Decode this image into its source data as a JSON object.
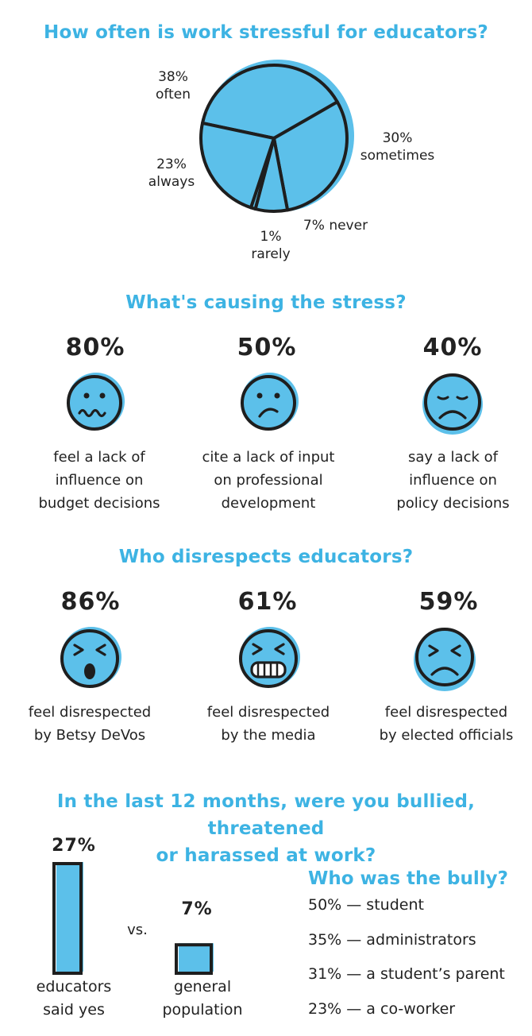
{
  "chart_data": [
    {
      "type": "pie",
      "title": "How often is work stressful for educators?",
      "slices": [
        {
          "label": "often",
          "value": 38,
          "display": "38%"
        },
        {
          "label": "sometimes",
          "value": 30,
          "display": "30%"
        },
        {
          "label": "never",
          "value": 7,
          "display": "7%"
        },
        {
          "label": "rarely",
          "value": 1,
          "display": "1%"
        },
        {
          "label": "always",
          "value": 23,
          "display": "23%"
        }
      ],
      "color": "#5cc0ea",
      "outline": "#1e1e1e"
    },
    {
      "type": "table",
      "title": "What's causing the stress?",
      "items": [
        {
          "value": "80%",
          "caption": [
            "feel a lack of",
            "influence on",
            "budget decisions"
          ],
          "icon": "worried-face-icon"
        },
        {
          "value": "50%",
          "caption": [
            "cite a lack of input",
            "on professional",
            "development"
          ],
          "icon": "confused-face-icon"
        },
        {
          "value": "40%",
          "caption": [
            "say a lack of",
            "influence on",
            "policy decisions"
          ],
          "icon": "sad-face-icon"
        }
      ]
    },
    {
      "type": "table",
      "title": "Who disrespects educators?",
      "items": [
        {
          "value": "86%",
          "caption": [
            "feel disrespected",
            "by Betsy DeVos"
          ],
          "icon": "shocked-face-icon"
        },
        {
          "value": "61%",
          "caption": [
            "feel disrespected",
            "by the media"
          ],
          "icon": "grimacing-face-icon"
        },
        {
          "value": "59%",
          "caption": [
            "feel disrespected",
            "by elected officials"
          ],
          "icon": "frustrated-face-icon"
        }
      ]
    },
    {
      "type": "bar",
      "title": "In the last 12 months, were you bullied, threatened or harassed at work?",
      "title_lines": [
        "In the last 12 months, were you bullied, threatened",
        "or harassed at work?"
      ],
      "categories": [
        [
          "educators",
          "said yes"
        ],
        [
          "general",
          "population"
        ]
      ],
      "values": [
        27,
        7
      ],
      "labels": [
        "27%",
        "7%"
      ],
      "vs": "vs.",
      "ylim": [
        0,
        27
      ]
    }
  ],
  "bully": {
    "title": "Who was the bully?",
    "items": [
      "50% — student",
      "35% — administrators",
      "31% — a student’s parent",
      "23% — a co-worker"
    ]
  },
  "colors": {
    "accent": "#3db3e3",
    "fill": "#5cc0ea",
    "ink": "#1e1e1e"
  }
}
